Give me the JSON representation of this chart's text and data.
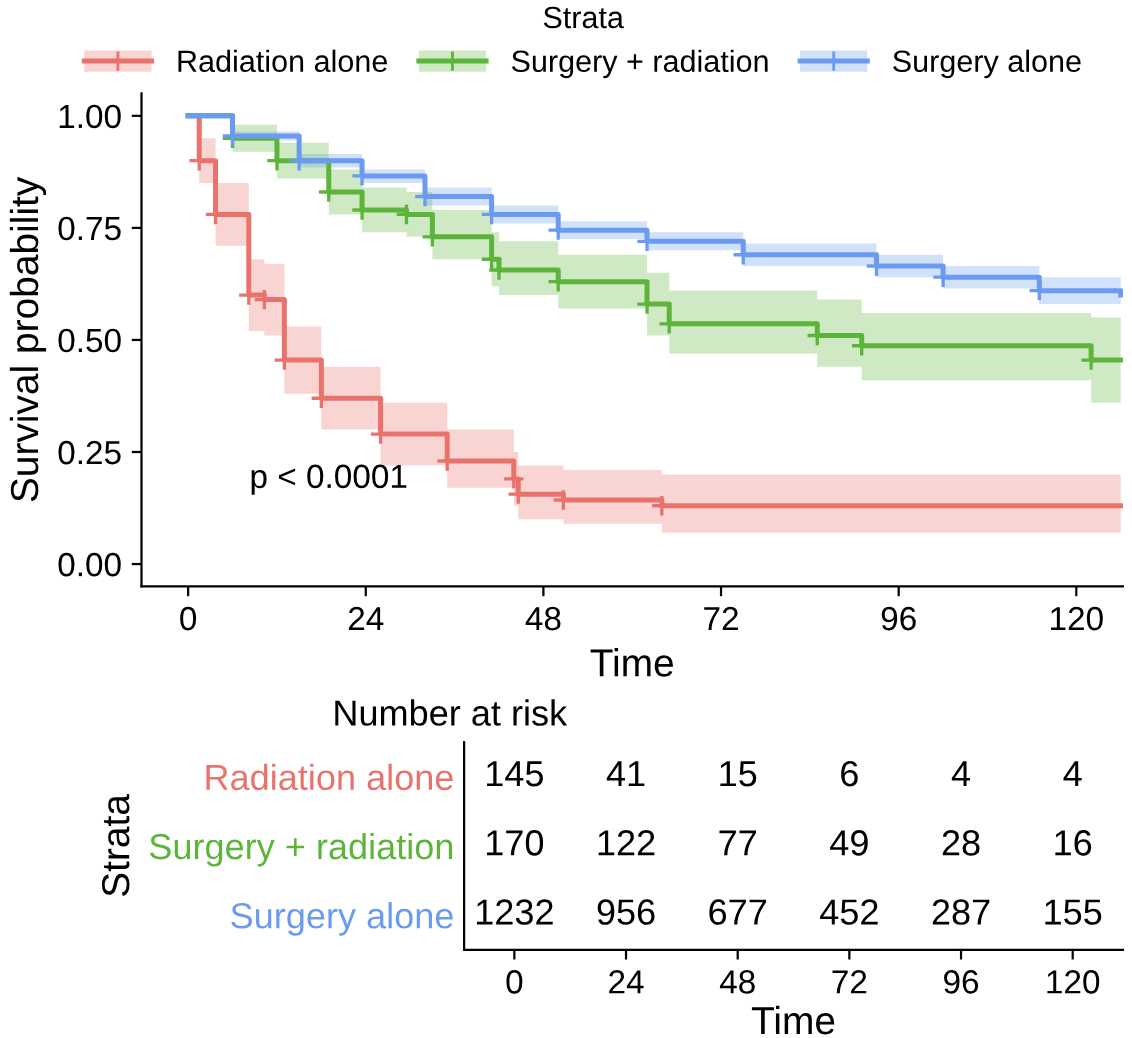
{
  "chart_data": [
    {
      "type": "step",
      "xlabel": "Time",
      "ylabel": "Survival probability",
      "legend_title": "Strata",
      "legend": "top",
      "marker": "cross",
      "line_style": "solid",
      "grid": false,
      "annotations": [
        "p < 0.0001"
      ],
      "xlim": [
        -6.3,
        126.3
      ],
      "xticks": [
        0,
        24,
        48,
        72,
        96,
        120
      ],
      "ylim": [
        -0.05,
        1.05
      ],
      "yticks": [
        {
          "value": 0,
          "label": "0.00"
        },
        {
          "value": 0.25,
          "label": "0.25"
        },
        {
          "value": 0.5,
          "label": "0.50"
        },
        {
          "value": 0.75,
          "label": "0.75"
        },
        {
          "value": 1,
          "label": "1.00"
        }
      ],
      "series": [
        {
          "name": "Radiation alone",
          "color": "#e8736c",
          "x": [
            0,
            1.5,
            3.7,
            8.2,
            10.3,
            13,
            18,
            26,
            35,
            44,
            44.6,
            50.7,
            64,
            126
          ],
          "values": [
            1,
            0.9,
            0.78,
            0.6,
            0.59,
            0.455,
            0.37,
            0.29,
            0.23,
            0.19,
            0.156,
            0.143,
            0.13,
            0.13
          ],
          "lower": [
            1,
            0.85,
            0.71,
            0.52,
            0.51,
            0.38,
            0.3,
            0.22,
            0.17,
            0.13,
            0.1,
            0.09,
            0.07,
            0.07
          ],
          "upper": [
            1,
            0.95,
            0.85,
            0.68,
            0.67,
            0.53,
            0.44,
            0.36,
            0.3,
            0.25,
            0.22,
            0.21,
            0.2,
            0.2
          ]
        },
        {
          "name": "Surgery + radiation",
          "color": "#5cb53a",
          "x": [
            0,
            6,
            12,
            19,
            23.5,
            29.5,
            33,
            41,
            42,
            50,
            62,
            65,
            85,
            91,
            122,
            126
          ],
          "values": [
            1,
            0.95,
            0.9,
            0.83,
            0.79,
            0.78,
            0.73,
            0.68,
            0.656,
            0.63,
            0.58,
            0.536,
            0.51,
            0.487,
            0.455,
            0.455
          ],
          "lower": [
            1,
            0.92,
            0.86,
            0.78,
            0.74,
            0.73,
            0.68,
            0.62,
            0.6,
            0.57,
            0.51,
            0.47,
            0.44,
            0.41,
            0.36,
            0.36
          ],
          "upper": [
            1,
            0.98,
            0.94,
            0.88,
            0.84,
            0.83,
            0.79,
            0.74,
            0.72,
            0.69,
            0.65,
            0.61,
            0.59,
            0.56,
            0.55,
            0.55
          ]
        },
        {
          "name": "Surgery alone",
          "color": "#6b9bf0",
          "x": [
            0,
            6,
            15,
            23.5,
            32,
            41,
            50,
            62,
            75,
            93,
            102,
            115,
            126
          ],
          "values": [
            1,
            0.955,
            0.9,
            0.866,
            0.82,
            0.78,
            0.745,
            0.72,
            0.69,
            0.665,
            0.64,
            0.61,
            0.6
          ],
          "lower": [
            1,
            0.945,
            0.885,
            0.85,
            0.8,
            0.76,
            0.725,
            0.7,
            0.665,
            0.64,
            0.615,
            0.58,
            0.57
          ],
          "upper": [
            1,
            0.965,
            0.915,
            0.88,
            0.84,
            0.8,
            0.765,
            0.74,
            0.715,
            0.69,
            0.665,
            0.64,
            0.63
          ]
        }
      ]
    },
    {
      "type": "heatmap",
      "title": "Number at risk",
      "xlabel": "Time",
      "ylabel": "Strata",
      "data_labels": true,
      "categories": [
        "0",
        "24",
        "48",
        "72",
        "96",
        "120"
      ],
      "y_categories": [
        "Radiation alone",
        "Surgery + radiation",
        "Surgery alone"
      ],
      "cells": [
        [
          145,
          41,
          15,
          6,
          4,
          4
        ],
        [
          170,
          122,
          77,
          49,
          28,
          16
        ],
        [
          1232,
          956,
          677,
          452,
          287,
          155
        ]
      ]
    }
  ]
}
